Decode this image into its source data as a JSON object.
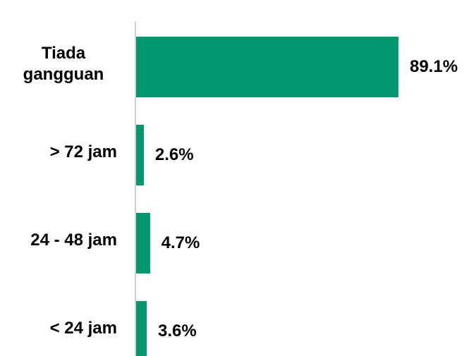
{
  "chart_data": {
    "type": "bar",
    "orientation": "horizontal",
    "categories": [
      "Tiada gangguan",
      "> 72 jam",
      "24 - 48 jam",
      "< 24 jam"
    ],
    "values": [
      89.1,
      2.6,
      4.7,
      3.6
    ],
    "value_labels": [
      "89.1%",
      "2.6%",
      "4.7%",
      "3.6%"
    ],
    "color": "#009670"
  }
}
